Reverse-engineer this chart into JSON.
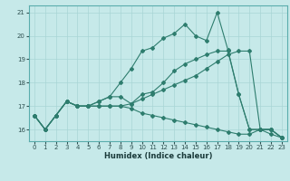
{
  "xlabel": "Humidex (Indice chaleur)",
  "xlim": [
    -0.5,
    23.5
  ],
  "ylim": [
    15.5,
    21.3
  ],
  "yticks": [
    16,
    17,
    18,
    19,
    20,
    21
  ],
  "xticks": [
    0,
    1,
    2,
    3,
    4,
    5,
    6,
    7,
    8,
    9,
    10,
    11,
    12,
    13,
    14,
    15,
    16,
    17,
    18,
    19,
    20,
    21,
    22,
    23
  ],
  "bg_color": "#c6e9e9",
  "grid_color": "#a8d5d5",
  "line_color": "#2e7d6e",
  "line_jagged": [
    16.6,
    16.0,
    16.6,
    17.2,
    17.0,
    17.0,
    17.2,
    17.4,
    18.0,
    18.6,
    19.35,
    19.5,
    19.9,
    20.1,
    20.5,
    20.0,
    19.8,
    21.0,
    19.4,
    17.5,
    16.0,
    16.0,
    15.8,
    15.65
  ],
  "line_smooth": [
    16.6,
    16.0,
    16.6,
    17.2,
    17.0,
    17.0,
    17.2,
    17.4,
    17.4,
    17.1,
    17.5,
    17.6,
    18.0,
    18.5,
    18.8,
    19.0,
    19.2,
    19.35,
    19.35,
    17.5,
    16.0,
    16.0,
    16.0,
    15.65
  ],
  "line_rise": [
    16.6,
    16.0,
    16.6,
    17.2,
    17.0,
    17.0,
    17.0,
    17.0,
    17.0,
    17.1,
    17.3,
    17.5,
    17.7,
    17.9,
    18.1,
    18.3,
    18.6,
    18.9,
    19.2,
    19.35,
    19.35,
    16.0,
    16.0,
    15.65
  ],
  "line_fall": [
    16.6,
    16.0,
    16.6,
    17.2,
    17.0,
    17.0,
    17.0,
    17.0,
    17.0,
    16.9,
    16.7,
    16.6,
    16.5,
    16.4,
    16.3,
    16.2,
    16.1,
    16.0,
    15.9,
    15.8,
    15.8,
    16.0,
    16.0,
    15.65
  ]
}
